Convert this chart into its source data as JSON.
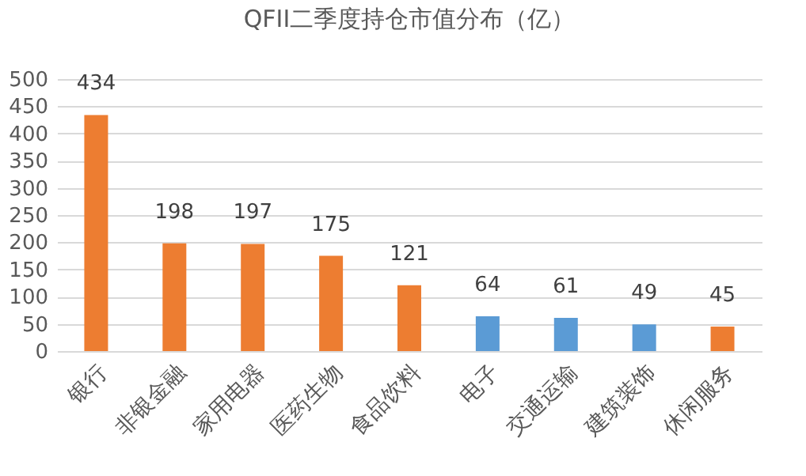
{
  "chart_data": {
    "type": "bar",
    "title": "QFII二季度持仓市值分布（亿）",
    "categories": [
      "银行",
      "非银金融",
      "家用电器",
      "医药生物",
      "食品饮料",
      "电子",
      "交通运输",
      "建筑装饰",
      "休闲服务"
    ],
    "values": [
      434,
      198,
      197,
      175,
      121,
      64,
      61,
      49,
      45
    ],
    "colors": [
      "#ed7d31",
      "#ed7d31",
      "#ed7d31",
      "#ed7d31",
      "#ed7d31",
      "#5b9bd5",
      "#5b9bd5",
      "#5b9bd5",
      "#ed7d31"
    ],
    "ylim": [
      0,
      500
    ],
    "yticks": [
      0,
      50,
      100,
      150,
      200,
      250,
      300,
      350,
      400,
      450,
      500
    ],
    "grid": "y",
    "data_labels": true
  }
}
